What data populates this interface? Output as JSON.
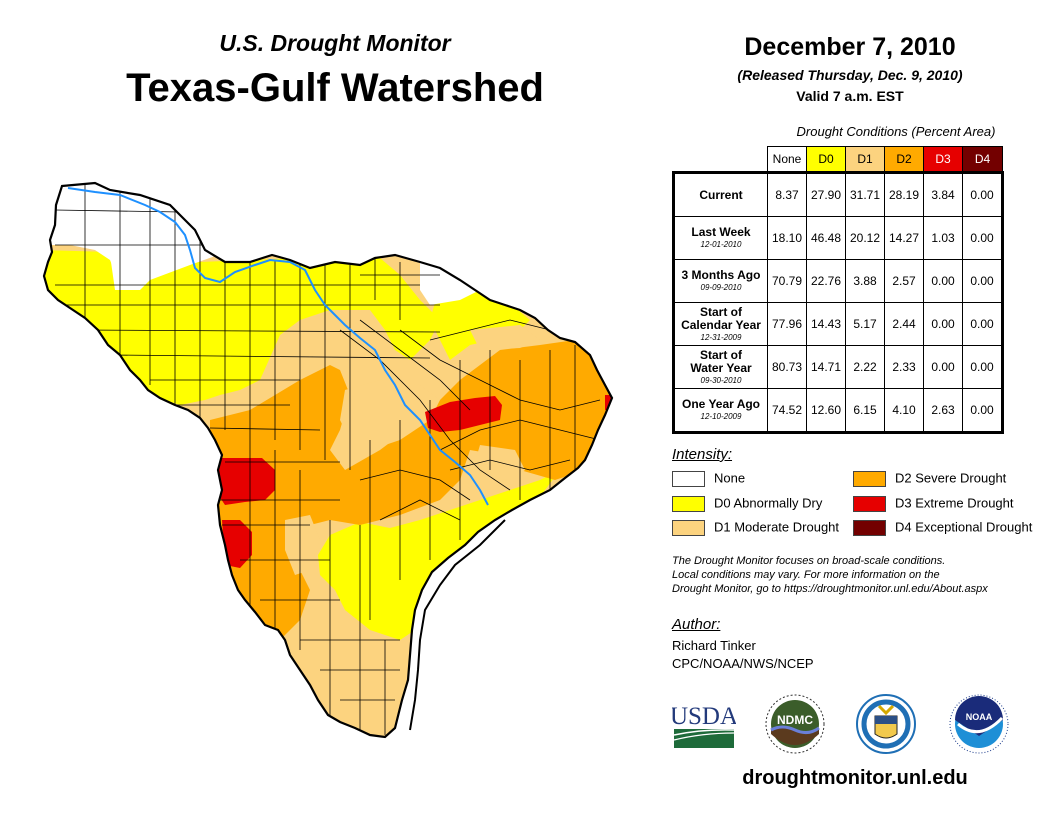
{
  "header": {
    "subtitle": "U.S. Drought Monitor",
    "title": "Texas-Gulf Watershed",
    "date": "December 7, 2010",
    "released": "(Released Thursday, Dec. 9, 2010)",
    "valid": "Valid 7 a.m. EST"
  },
  "conditions": {
    "caption": "Drought Conditions (Percent Area)",
    "columns": [
      {
        "label": "None",
        "color": "#ffffff",
        "text_color": "#000000"
      },
      {
        "label": "D0",
        "color": "#ffff00",
        "text_color": "#000000"
      },
      {
        "label": "D1",
        "color": "#fcd37f",
        "text_color": "#000000"
      },
      {
        "label": "D2",
        "color": "#ffaa00",
        "text_color": "#000000"
      },
      {
        "label": "D3",
        "color": "#e60000",
        "text_color": "#ffffff"
      },
      {
        "label": "D4",
        "color": "#730000",
        "text_color": "#ffffff"
      }
    ],
    "rows": [
      {
        "label": "Current",
        "label2": "",
        "date": "",
        "values": [
          "8.37",
          "27.90",
          "31.71",
          "28.19",
          "3.84",
          "0.00"
        ]
      },
      {
        "label": "Last Week",
        "label2": "",
        "date": "12-01-2010",
        "values": [
          "18.10",
          "46.48",
          "20.12",
          "14.27",
          "1.03",
          "0.00"
        ]
      },
      {
        "label": "3 Months Ago",
        "label2": "",
        "date": "09-09-2010",
        "values": [
          "70.79",
          "22.76",
          "3.88",
          "2.57",
          "0.00",
          "0.00"
        ]
      },
      {
        "label": "Start of",
        "label2": "Calendar Year",
        "date": "12-31-2009",
        "values": [
          "77.96",
          "14.43",
          "5.17",
          "2.44",
          "0.00",
          "0.00"
        ]
      },
      {
        "label": "Start of",
        "label2": "Water Year",
        "date": "09-30-2010",
        "values": [
          "80.73",
          "14.71",
          "2.22",
          "2.33",
          "0.00",
          "0.00"
        ]
      },
      {
        "label": "One Year Ago",
        "label2": "",
        "date": "12-10-2009",
        "values": [
          "74.52",
          "12.60",
          "6.15",
          "4.10",
          "2.63",
          "0.00"
        ]
      }
    ]
  },
  "legend": {
    "heading": "Intensity:",
    "items": [
      {
        "label": "None",
        "color": "#ffffff"
      },
      {
        "label": "D0 Abnormally Dry",
        "color": "#ffff00"
      },
      {
        "label": "D1 Moderate Drought",
        "color": "#fcd37f"
      },
      {
        "label": "D2 Severe Drought",
        "color": "#ffaa00"
      },
      {
        "label": "D3 Extreme Drought",
        "color": "#e60000"
      },
      {
        "label": "D4 Exceptional Drought",
        "color": "#730000"
      }
    ]
  },
  "disclaimer": [
    "The Drought Monitor focuses on broad-scale conditions.",
    "Local conditions may vary. For more information on the",
    "Drought Monitor, go to https://droughtmonitor.unl.edu/About.aspx"
  ],
  "author": {
    "heading": "Author:",
    "name": "Richard Tinker",
    "org": "CPC/NOAA/NWS/NCEP"
  },
  "logos": {
    "usda": "USDA",
    "ndmc": "NDMC",
    "noaa": "NOAA"
  },
  "footer_url": "droughtmonitor.unl.edu",
  "map": {
    "river_color": "#1e90ff",
    "boundary_color": "#000000"
  }
}
